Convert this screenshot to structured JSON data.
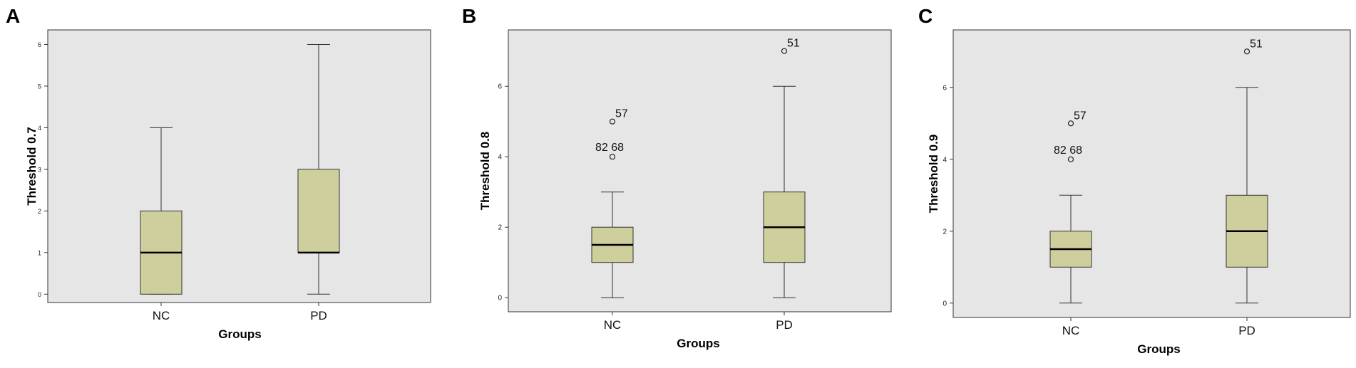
{
  "chart_data": [
    {
      "type": "boxplot",
      "panel_label": "A",
      "xlabel": "Groups",
      "ylabel": "Threshold 0.7",
      "ylim": [
        -0.2,
        6.35
      ],
      "yticks": [
        0,
        1,
        2,
        3,
        4,
        5,
        6
      ],
      "categories": [
        "NC",
        "PD"
      ],
      "boxes": [
        {
          "category": "NC",
          "min": 0,
          "q1": 0,
          "median": 1,
          "q3": 2,
          "max": 4
        },
        {
          "category": "PD",
          "min": 0,
          "q1": 1,
          "median": 1,
          "q3": 3,
          "max": 6
        }
      ],
      "outliers": [],
      "grid": false,
      "colors": {
        "box_fill": "#cfcf9e",
        "plot_bg": "#e6e6e6"
      }
    },
    {
      "type": "boxplot",
      "panel_label": "B",
      "xlabel": "Groups",
      "ylabel": "Threshold 0.8",
      "ylim": [
        -0.4,
        7.6
      ],
      "yticks": [
        0,
        2,
        4,
        6
      ],
      "categories": [
        "NC",
        "PD"
      ],
      "boxes": [
        {
          "category": "NC",
          "min": 0,
          "q1": 1,
          "median": 1.5,
          "q3": 2,
          "max": 3
        },
        {
          "category": "PD",
          "min": 0,
          "q1": 1,
          "median": 2,
          "q3": 3,
          "max": 6
        }
      ],
      "outliers": [
        {
          "category": "NC",
          "value": 5,
          "label": "57"
        },
        {
          "category": "NC",
          "value": 4,
          "label": "82 68"
        },
        {
          "category": "PD",
          "value": 7,
          "label": "51"
        }
      ],
      "grid": false,
      "colors": {
        "box_fill": "#cfcf9e",
        "plot_bg": "#e6e6e6"
      }
    },
    {
      "type": "boxplot",
      "panel_label": "C",
      "xlabel": "Groups",
      "ylabel": "Threshold 0.9",
      "ylim": [
        -0.4,
        7.6
      ],
      "yticks": [
        0,
        2,
        4,
        6
      ],
      "categories": [
        "NC",
        "PD"
      ],
      "boxes": [
        {
          "category": "NC",
          "min": 0,
          "q1": 1,
          "median": 1.5,
          "q3": 2,
          "max": 3
        },
        {
          "category": "PD",
          "min": 0,
          "q1": 1,
          "median": 2,
          "q3": 3,
          "max": 6
        }
      ],
      "outliers": [
        {
          "category": "NC",
          "value": 5,
          "label": "57"
        },
        {
          "category": "NC",
          "value": 4,
          "label": "82 68"
        },
        {
          "category": "PD",
          "value": 7,
          "label": "51"
        }
      ],
      "grid": false,
      "colors": {
        "box_fill": "#cfcf9e",
        "plot_bg": "#e6e6e6"
      }
    }
  ]
}
